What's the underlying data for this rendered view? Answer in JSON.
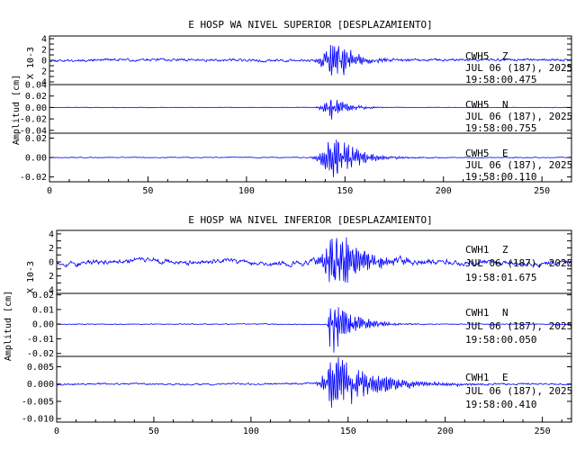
{
  "chart_data": [
    {
      "type": "line",
      "title": "E HOSP WA NIVEL SUPERIOR [DESPLAZAMIENTO]",
      "ylabel": "Amplitud [cm]",
      "xlim": [
        0,
        265
      ],
      "x_ticks": [
        "0",
        "50",
        "100",
        "150",
        "200",
        "250"
      ],
      "series_color": "#0000ff",
      "panels": [
        {
          "scale_label": "X 10-3",
          "ylim": [
            -4.5,
            4.5
          ],
          "ytick_values": [
            -4,
            -3,
            -2,
            -1,
            0,
            1,
            2,
            3,
            4
          ],
          "ytick_labels": [
            "4",
            "2",
            "0",
            "2",
            "4"
          ],
          "ytick_label_values": [
            4,
            2,
            0,
            -2,
            -4
          ],
          "station": "CWH5",
          "component": "Z",
          "date": "JUL 06 (187), 2025",
          "time": "19:58:00.475",
          "signal": {
            "noise": 0.35,
            "slow_amp": 0.25,
            "event_start": 131,
            "event_peak": 144,
            "event_amp": 4.6,
            "decay": 9.0,
            "seed": 11
          }
        },
        {
          "ylim": [
            -0.045,
            0.04
          ],
          "ytick_values": [
            -0.04,
            -0.02,
            0.0,
            0.02,
            0.04
          ],
          "ytick_labels": [
            "-0.04",
            "-0.02",
            "0.00",
            "0.02",
            "0.04"
          ],
          "ytick_label_values": [
            -0.04,
            -0.02,
            0.0,
            0.02,
            0.04
          ],
          "station": "CWH5",
          "component": "N",
          "date": "JUL 06 (187), 2025",
          "time": "19:58:00.755",
          "signal": {
            "noise": 0.0006,
            "slow_amp": 0.0004,
            "event_start": 133,
            "event_peak": 143,
            "event_amp": 0.02,
            "decay": 8.0,
            "seed": 23
          }
        },
        {
          "ylim": [
            -0.025,
            0.025
          ],
          "ytick_values": [
            -0.02,
            0.0,
            0.02
          ],
          "ytick_labels": [
            "-0.02",
            "0.00",
            "0.02"
          ],
          "ytick_label_values": [
            -0.02,
            0.0,
            0.02
          ],
          "station": "CWH5",
          "component": "E",
          "date": "JUL 06 (187), 2025",
          "time": "19:58:00.110",
          "signal": {
            "noise": 0.0006,
            "slow_amp": 0.0003,
            "event_start": 131,
            "event_peak": 144,
            "event_amp": 0.024,
            "decay": 11.0,
            "seed": 37
          }
        }
      ]
    },
    {
      "type": "line",
      "title": "E HOSP WA NIVEL INFERIOR [DESPLAZAMIENTO]",
      "ylabel": "Amplitud [cm]",
      "xlim": [
        0,
        265
      ],
      "x_ticks": [
        "0",
        "50",
        "100",
        "150",
        "200",
        "250"
      ],
      "series_color": "#0000ff",
      "panels": [
        {
          "scale_label": "X 10-3",
          "ylim": [
            -4.5,
            4.5
          ],
          "ytick_values": [
            -4,
            -3,
            -2,
            -1,
            0,
            1,
            2,
            3,
            4
          ],
          "ytick_labels": [
            "4",
            "2",
            "0",
            "2",
            "4"
          ],
          "ytick_label_values": [
            4,
            2,
            0,
            -2,
            -4
          ],
          "station": "CWH1",
          "component": "Z",
          "date": "JUL 06 (187), 2025",
          "time": "19:58:01.675",
          "signal": {
            "noise": 0.45,
            "slow_amp": 0.9,
            "event_start": 130,
            "event_peak": 143,
            "event_amp": 4.8,
            "decay": 14.0,
            "seed": 53
          }
        },
        {
          "ylim": [
            -0.022,
            0.021
          ],
          "ytick_values": [
            -0.02,
            -0.01,
            0.0,
            0.01,
            0.02
          ],
          "ytick_labels": [
            "-0.02",
            "-0.01",
            "0.00",
            "0.01",
            "0.02"
          ],
          "ytick_label_values": [
            -0.02,
            -0.01,
            0.0,
            0.01,
            0.02
          ],
          "station": "CWH1",
          "component": "N",
          "date": "JUL 06 (187), 2025",
          "time": "19:58:00.050",
          "signal": {
            "noise": 0.0004,
            "slow_amp": 0.0003,
            "event_start": 139,
            "event_peak": 141,
            "event_amp": 0.022,
            "decay": 10.0,
            "seed": 71
          }
        },
        {
          "ylim": [
            -0.011,
            0.008
          ],
          "ytick_values": [
            -0.01,
            -0.005,
            0.0,
            0.005
          ],
          "ytick_labels": [
            "-0.010",
            "-0.005",
            "0.000",
            "0.005"
          ],
          "ytick_label_values": [
            -0.01,
            -0.005,
            0.0,
            0.005
          ],
          "station": "CWH1",
          "component": "E",
          "date": "JUL 06 (187), 2025",
          "time": "19:58:00.410",
          "signal": {
            "noise": 0.00035,
            "slow_amp": 0.0003,
            "event_start": 131,
            "event_peak": 143,
            "event_amp": 0.009,
            "decay": 18.0,
            "seed": 97
          }
        }
      ]
    }
  ]
}
